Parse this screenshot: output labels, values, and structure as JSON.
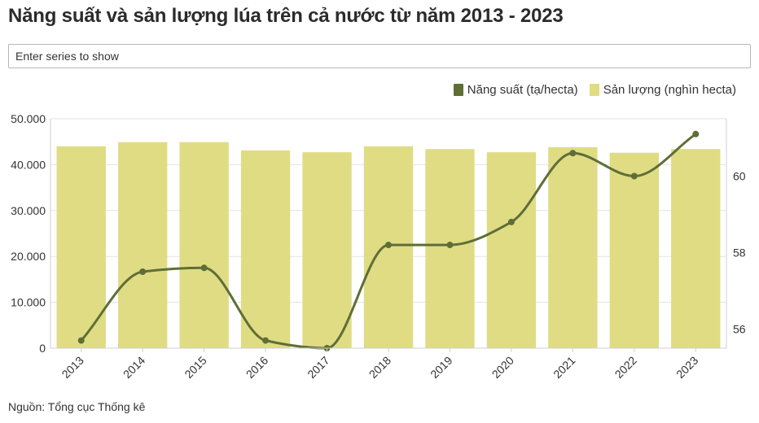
{
  "title": "Năng suất và sản lượng lúa trên cả nước từ năm 2013 - 2023",
  "search": {
    "placeholder": "Enter series to show"
  },
  "legend": {
    "yield_label": "Năng suất (tạ/hecta)",
    "output_label": "Sản lượng (nghìn hecta)"
  },
  "source": "Nguồn: Tổng cục Thống kê",
  "colors": {
    "bar": "#dfdc84",
    "line": "#5f6e37"
  },
  "chart_data": {
    "type": "bar+line",
    "categories": [
      "2013",
      "2014",
      "2015",
      "2016",
      "2017",
      "2018",
      "2019",
      "2020",
      "2021",
      "2022",
      "2023"
    ],
    "series": [
      {
        "name": "Sản lượng (nghìn hecta)",
        "type": "bar",
        "axis": "left",
        "values": [
          44000,
          44900,
          44900,
          43100,
          42700,
          44000,
          43400,
          42700,
          43800,
          42600,
          43400
        ]
      },
      {
        "name": "Năng suất (tạ/hecta)",
        "type": "line",
        "axis": "right",
        "values": [
          55.7,
          57.5,
          57.6,
          55.7,
          55.5,
          58.2,
          58.2,
          58.8,
          60.6,
          60.0,
          61.1
        ]
      }
    ],
    "y_left": {
      "min": 0,
      "max": 50000,
      "ticks": [
        "0",
        "10.000",
        "20.000",
        "30.000",
        "40.000",
        "50.000"
      ]
    },
    "y_right": {
      "min": 55.5,
      "max": 61.5,
      "ticks": [
        "56",
        "58",
        "60"
      ],
      "tick_values": [
        56,
        58,
        60
      ]
    },
    "x_tick_rotation": -45,
    "grid": "horizontal",
    "legend_position": "top-right"
  }
}
